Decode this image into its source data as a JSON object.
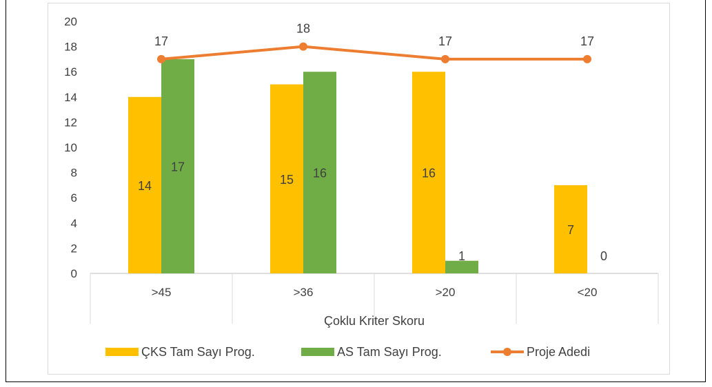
{
  "chart_data": {
    "type": "bar",
    "categories": [
      ">45",
      ">36",
      ">20",
      "<20"
    ],
    "xlabel": "Çoklu Kriter Skoru",
    "ylabel": "",
    "ylim": [
      0,
      20
    ],
    "y_ticks": [
      0,
      2,
      4,
      6,
      8,
      10,
      12,
      14,
      16,
      18,
      20
    ],
    "grid": false,
    "legend_position": "bottom",
    "series": [
      {
        "name": "ÇKS Tam Sayı Prog.",
        "type": "bar",
        "color": "#FFC000",
        "values": [
          14,
          15,
          16,
          7
        ]
      },
      {
        "name": "AS Tam Sayı Prog.",
        "type": "bar",
        "color": "#70AD47",
        "values": [
          17,
          16,
          1,
          0
        ]
      },
      {
        "name": "Proje Adedi",
        "type": "line",
        "color": "#ED7D31",
        "values": [
          17,
          18,
          17,
          17
        ]
      }
    ]
  }
}
